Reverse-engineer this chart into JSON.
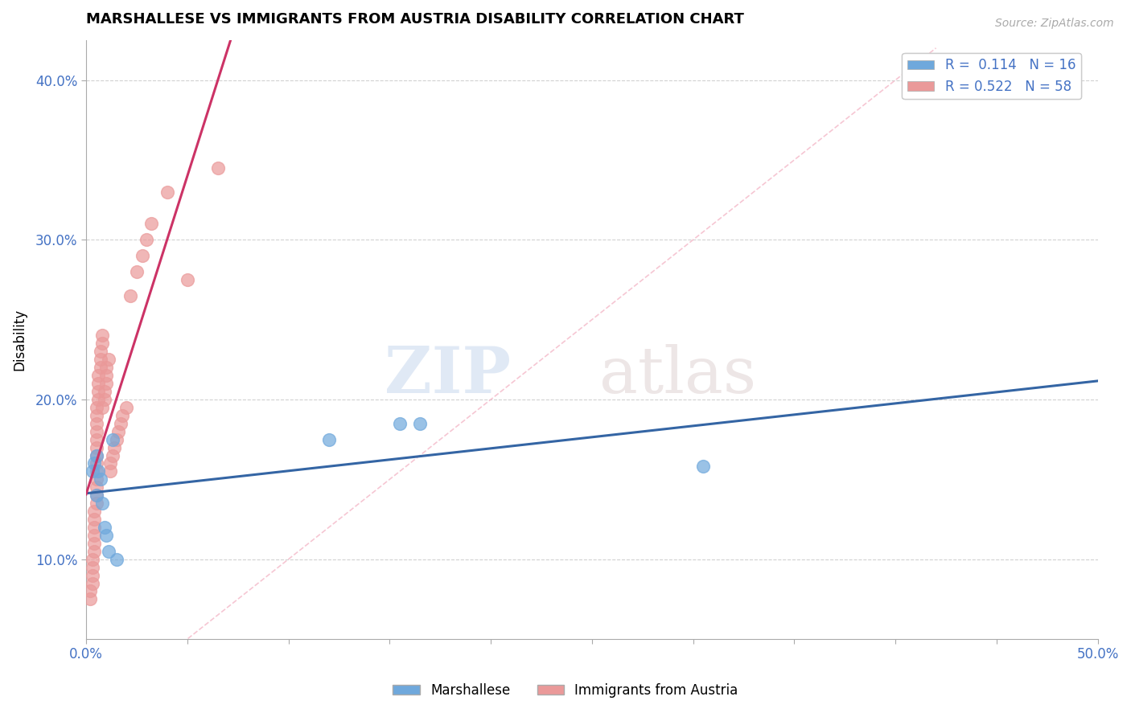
{
  "title": "MARSHALLESE VS IMMIGRANTS FROM AUSTRIA DISABILITY CORRELATION CHART",
  "source_text": "Source: ZipAtlas.com",
  "ylabel": "Disability",
  "xlim": [
    0.0,
    0.5
  ],
  "ylim": [
    0.05,
    0.425
  ],
  "legend_r1": "R =  0.114",
  "legend_n1": "N = 16",
  "legend_r2": "R = 0.522",
  "legend_n2": "N = 58",
  "blue_color": "#6fa8dc",
  "pink_color": "#ea9999",
  "blue_line_color": "#3465a4",
  "pink_line_color": "#cc3366",
  "watermark_zip": "ZIP",
  "watermark_atlas": "atlas",
  "background_color": "#ffffff",
  "grid_color": "#cccccc",
  "marshallese_x": [
    0.003,
    0.004,
    0.005,
    0.005,
    0.006,
    0.007,
    0.008,
    0.009,
    0.01,
    0.011,
    0.013,
    0.015,
    0.12,
    0.155,
    0.165,
    0.305
  ],
  "marshallese_y": [
    0.155,
    0.16,
    0.165,
    0.14,
    0.155,
    0.15,
    0.135,
    0.12,
    0.115,
    0.105,
    0.175,
    0.1,
    0.175,
    0.185,
    0.185,
    0.158
  ],
  "austria_x": [
    0.002,
    0.002,
    0.003,
    0.003,
    0.003,
    0.003,
    0.004,
    0.004,
    0.004,
    0.004,
    0.004,
    0.004,
    0.005,
    0.005,
    0.005,
    0.005,
    0.005,
    0.005,
    0.005,
    0.005,
    0.005,
    0.005,
    0.005,
    0.005,
    0.005,
    0.006,
    0.006,
    0.006,
    0.006,
    0.007,
    0.007,
    0.007,
    0.008,
    0.008,
    0.008,
    0.009,
    0.009,
    0.01,
    0.01,
    0.01,
    0.011,
    0.012,
    0.012,
    0.013,
    0.014,
    0.015,
    0.016,
    0.017,
    0.018,
    0.02,
    0.022,
    0.025,
    0.028,
    0.03,
    0.032,
    0.04,
    0.05,
    0.065
  ],
  "austria_y": [
    0.075,
    0.08,
    0.085,
    0.09,
    0.095,
    0.1,
    0.105,
    0.11,
    0.115,
    0.12,
    0.125,
    0.13,
    0.135,
    0.14,
    0.145,
    0.15,
    0.155,
    0.16,
    0.165,
    0.17,
    0.175,
    0.18,
    0.185,
    0.19,
    0.195,
    0.2,
    0.205,
    0.21,
    0.215,
    0.22,
    0.225,
    0.23,
    0.235,
    0.24,
    0.195,
    0.2,
    0.205,
    0.21,
    0.215,
    0.22,
    0.225,
    0.155,
    0.16,
    0.165,
    0.17,
    0.175,
    0.18,
    0.185,
    0.19,
    0.195,
    0.265,
    0.28,
    0.29,
    0.3,
    0.31,
    0.33,
    0.275,
    0.345
  ]
}
